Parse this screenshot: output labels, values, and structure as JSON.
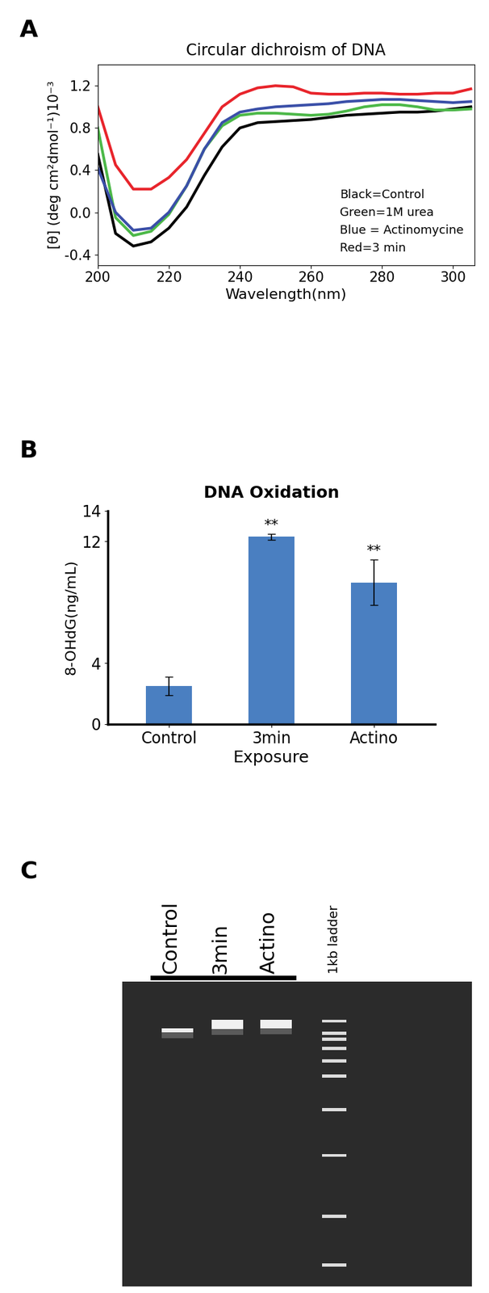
{
  "chart_data": [
    {
      "panel_label": "A",
      "type": "line",
      "title": "Circular dichroism of DNA",
      "x_label": "Wavelength(nm)",
      "y_label": "[θ] (deg cm²dmol⁻¹)10⁻³",
      "x": [
        200,
        205,
        210,
        215,
        220,
        225,
        230,
        235,
        240,
        245,
        250,
        255,
        260,
        265,
        270,
        275,
        280,
        285,
        290,
        295,
        300,
        305
      ],
      "xlim": [
        200,
        306
      ],
      "xticks": [
        200,
        220,
        240,
        260,
        280,
        300
      ],
      "ylim": [
        -0.5,
        1.4
      ],
      "yticks": [
        -0.4,
        0.0,
        0.4,
        0.8,
        1.2
      ],
      "legend": "lower right",
      "series": [
        {
          "name": "Black=Control",
          "color": "#000000",
          "values": [
            0.55,
            -0.2,
            -0.32,
            -0.28,
            -0.15,
            0.05,
            0.35,
            0.62,
            0.8,
            0.85,
            0.86,
            0.87,
            0.88,
            0.9,
            0.92,
            0.93,
            0.94,
            0.95,
            0.95,
            0.96,
            0.98,
            1.0
          ]
        },
        {
          "name": "Green=1M urea",
          "color": "#4cb848",
          "values": [
            0.8,
            -0.05,
            -0.22,
            -0.18,
            -0.02,
            0.25,
            0.6,
            0.82,
            0.92,
            0.94,
            0.94,
            0.93,
            0.92,
            0.93,
            0.96,
            1.0,
            1.02,
            1.02,
            1.0,
            0.97,
            0.97,
            0.98
          ]
        },
        {
          "name": "Blue = Actinomycine",
          "color": "#3a4fa8",
          "values": [
            0.42,
            0.0,
            -0.17,
            -0.15,
            0.0,
            0.25,
            0.6,
            0.85,
            0.95,
            0.98,
            1.0,
            1.01,
            1.02,
            1.03,
            1.05,
            1.06,
            1.07,
            1.07,
            1.06,
            1.05,
            1.04,
            1.05
          ]
        },
        {
          "name": "Red=3 min",
          "color": "#e8242b",
          "values": [
            1.0,
            0.45,
            0.22,
            0.22,
            0.33,
            0.5,
            0.75,
            1.0,
            1.12,
            1.18,
            1.2,
            1.19,
            1.13,
            1.12,
            1.12,
            1.13,
            1.13,
            1.12,
            1.12,
            1.13,
            1.13,
            1.17
          ]
        }
      ]
    },
    {
      "panel_label": "B",
      "type": "bar",
      "title": "DNA Oxidation",
      "x_label": "Exposure",
      "y_label": "8-OHdG(ng/mL)",
      "categories": [
        "Control",
        "3min",
        "Actino"
      ],
      "values": [
        2.5,
        12.3,
        9.3
      ],
      "errors": [
        0.6,
        0.2,
        1.5
      ],
      "color": "#4a7fc1",
      "ylim": [
        0,
        14
      ],
      "yticks": [
        0,
        4,
        12,
        14
      ],
      "annotations": [
        {
          "category": "3min",
          "text": "**"
        },
        {
          "category": "Actino",
          "text": "**"
        }
      ]
    },
    {
      "panel_label": "C",
      "type": "gel",
      "lanes": [
        "Control",
        "3min",
        "Actino"
      ],
      "ladder": "1kb ladder"
    }
  ]
}
